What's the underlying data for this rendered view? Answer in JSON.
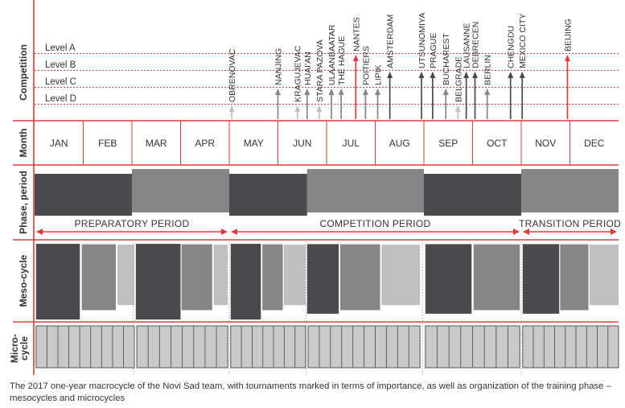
{
  "colors": {
    "red": "#e23b3b",
    "dark": "#4a4a4e",
    "mid": "#858588",
    "light": "#bfbfc1",
    "micro": "#c9c9cb",
    "text": "#333333"
  },
  "rows": [
    "Competition",
    "Month",
    "Phase, period",
    "Meso-cycle",
    "Micro-cycle"
  ],
  "levels": [
    "Level A",
    "Level B",
    "Level C",
    "Level D"
  ],
  "months": [
    "JAN",
    "FEB",
    "MAR",
    "APR",
    "MAY",
    "JUN",
    "JUL",
    "AUG",
    "SEP",
    "OCT",
    "NOV",
    "DEC"
  ],
  "competitions": [
    {
      "name": "OBRENOVAC",
      "month": 4.05,
      "level": "D",
      "shade": "light"
    },
    {
      "name": "NANJING",
      "month": 5.0,
      "level": "C",
      "shade": "mid"
    },
    {
      "name": "KRAGUJEVAC",
      "month": 5.4,
      "level": "D",
      "shade": "light"
    },
    {
      "name": "HUAI'AN",
      "month": 5.6,
      "level": "C",
      "shade": "mid"
    },
    {
      "name": "STARA PAZOVA",
      "month": 5.85,
      "level": "D",
      "shade": "light"
    },
    {
      "name": "ULAANBAATAR",
      "month": 6.1,
      "level": "C",
      "shade": "mid"
    },
    {
      "name": "THE HAGUE",
      "month": 6.3,
      "level": "C",
      "shade": "mid"
    },
    {
      "name": "NANTES",
      "month": 6.6,
      "level": "A",
      "shade": "red"
    },
    {
      "name": "POITIERS",
      "month": 6.8,
      "level": "C",
      "shade": "mid"
    },
    {
      "name": "LIPIK",
      "month": 7.05,
      "level": "C",
      "shade": "mid"
    },
    {
      "name": "AMSTERDAM",
      "month": 7.3,
      "level": "B",
      "shade": "dark"
    },
    {
      "name": "UTSUNOMIYA",
      "month": 7.95,
      "level": "B",
      "shade": "dark"
    },
    {
      "name": "PRAGUE",
      "month": 8.18,
      "level": "B",
      "shade": "dark"
    },
    {
      "name": "BUCHAREST",
      "month": 8.45,
      "level": "C",
      "shade": "mid"
    },
    {
      "name": "BELGRADE",
      "month": 8.7,
      "level": "D",
      "shade": "light"
    },
    {
      "name": "LAUSANNE",
      "month": 8.87,
      "level": "B",
      "shade": "dark"
    },
    {
      "name": "DEBRECEN",
      "month": 9.05,
      "level": "B",
      "shade": "dark"
    },
    {
      "name": "BERLIN",
      "month": 9.3,
      "level": "C",
      "shade": "mid"
    },
    {
      "name": "CHENGDU",
      "month": 9.78,
      "level": "B",
      "shade": "dark"
    },
    {
      "name": "MEXICO CITY",
      "month": 10.02,
      "level": "B",
      "shade": "dark"
    },
    {
      "name": "BEIJING",
      "month": 10.95,
      "level": "A",
      "shade": "red"
    }
  ],
  "phases": [
    {
      "start": 0,
      "end": 2.0,
      "shade": "dark"
    },
    {
      "start": 2.0,
      "end": 4.0,
      "shade": "mid"
    },
    {
      "start": 4.0,
      "end": 5.6,
      "shade": "dark"
    },
    {
      "start": 5.6,
      "end": 8.0,
      "shade": "mid"
    },
    {
      "start": 8.0,
      "end": 10.0,
      "shade": "dark"
    },
    {
      "start": 10.0,
      "end": 12.0,
      "shade": "mid"
    }
  ],
  "periods": [
    {
      "label": "PREPARATORY PERIOD",
      "start": 0,
      "end": 4.0
    },
    {
      "label": "COMPETITION PERIOD",
      "start": 4.0,
      "end": 10.0
    },
    {
      "label": "TRANSITION PERIOD",
      "start": 10.0,
      "end": 12.0
    }
  ],
  "mesocycles": [
    {
      "start": 0.03,
      "end": 0.93,
      "shade": "dark",
      "level": 1.0
    },
    {
      "start": 0.97,
      "end": 1.67,
      "shade": "mid",
      "level": 0.87
    },
    {
      "start": 1.7,
      "end": 2.05,
      "shade": "light",
      "level": 0.8
    },
    {
      "start": 2.08,
      "end": 3.0,
      "shade": "dark",
      "level": 1.0
    },
    {
      "start": 3.02,
      "end": 3.65,
      "shade": "mid",
      "level": 0.87
    },
    {
      "start": 3.68,
      "end": 3.97,
      "shade": "light",
      "level": 0.8
    },
    {
      "start": 4.03,
      "end": 4.65,
      "shade": "dark",
      "level": 1.0
    },
    {
      "start": 4.68,
      "end": 5.1,
      "shade": "mid",
      "level": 0.87
    },
    {
      "start": 5.12,
      "end": 5.57,
      "shade": "light",
      "level": 0.8
    },
    {
      "start": 5.6,
      "end": 6.25,
      "shade": "dark",
      "level": 0.92
    },
    {
      "start": 6.28,
      "end": 7.1,
      "shade": "mid",
      "level": 0.87
    },
    {
      "start": 7.13,
      "end": 7.92,
      "shade": "light",
      "level": 0.8
    },
    {
      "start": 8.03,
      "end": 8.98,
      "shade": "dark",
      "level": 0.92
    },
    {
      "start": 9.02,
      "end": 9.97,
      "shade": "mid",
      "level": 0.87
    },
    {
      "start": 10.03,
      "end": 10.78,
      "shade": "dark",
      "level": 0.92
    },
    {
      "start": 10.8,
      "end": 11.38,
      "shade": "mid",
      "level": 0.87
    },
    {
      "start": 11.4,
      "end": 12.0,
      "shade": "light",
      "level": 0.8
    }
  ],
  "microcycles": [
    {
      "start": 0.03,
      "end": 2.05,
      "count": 9
    },
    {
      "start": 2.1,
      "end": 3.97,
      "count": 8
    },
    {
      "start": 4.03,
      "end": 5.57,
      "count": 7
    },
    {
      "start": 5.62,
      "end": 7.92,
      "count": 10
    },
    {
      "start": 8.03,
      "end": 9.97,
      "count": 8
    },
    {
      "start": 10.03,
      "end": 12.0,
      "count": 9
    }
  ],
  "caption": "The 2017 one-year macrocycle of the Novi Sad team, with tournaments marked in terms of importance, as well as organization of the training phase – mesocycles and microcycles"
}
